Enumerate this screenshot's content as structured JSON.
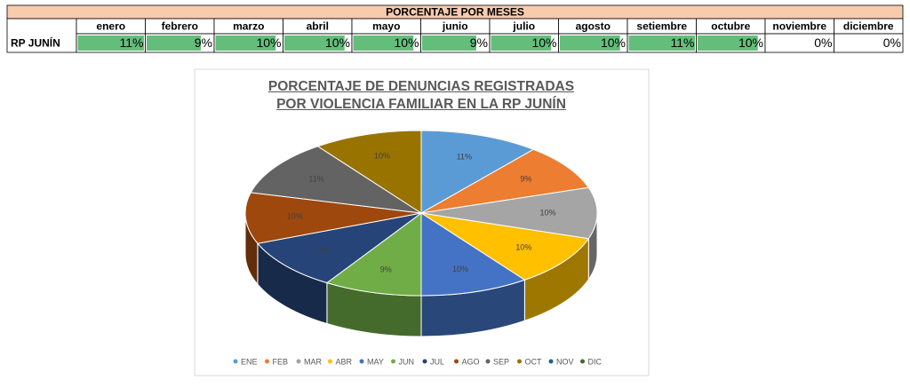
{
  "table": {
    "title": "PORCENTAJE POR MESES",
    "months": [
      "enero",
      "febrero",
      "marzo",
      "abril",
      "mayo",
      "junio",
      "julio",
      "agosto",
      "setiembre",
      "octubre",
      "noviembre",
      "diciembre"
    ],
    "row_label": "RP JUNÍN",
    "values": [
      11,
      9,
      10,
      10,
      10,
      9,
      10,
      10,
      11,
      10,
      0,
      0
    ],
    "value_labels": [
      "11%",
      "9%",
      "10%",
      "10%",
      "10%",
      "9%",
      "10%",
      "10%",
      "11%",
      "10%",
      "0%",
      "0%"
    ],
    "bar_color": "#63be7b"
  },
  "chart_data": {
    "type": "pie",
    "title": "PORCENTAJE DE DENUNCIAS REGISTRADAS POR VIOLENCIA FAMILIAR EN LA RP JUNÍN",
    "categories": [
      "ENE",
      "FEB",
      "MAR",
      "ABR",
      "MAY",
      "JUN",
      "JUL",
      "AGO",
      "SEP",
      "OCT",
      "NOV",
      "DIC"
    ],
    "values": [
      11,
      9,
      10,
      10,
      10,
      9,
      10,
      10,
      11,
      10,
      0,
      0
    ],
    "value_labels": [
      "11%",
      "9%",
      "10%",
      "10%",
      "10%",
      "9%",
      "10%",
      "10%",
      "11%",
      "10%",
      null,
      null
    ],
    "colors": [
      "#5b9bd5",
      "#ed7d31",
      "#a5a5a5",
      "#ffc000",
      "#4472c4",
      "#70ad47",
      "#264478",
      "#9e480e",
      "#636363",
      "#997300",
      "#255e91",
      "#43682b"
    ],
    "legend": "bottom",
    "three_d": true
  }
}
